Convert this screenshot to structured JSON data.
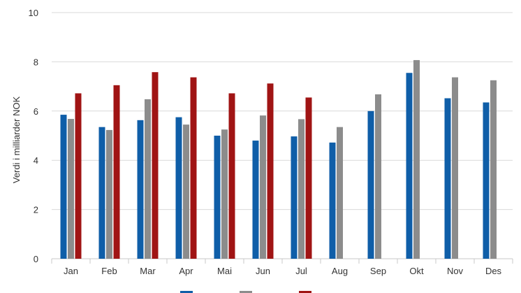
{
  "chart_data": {
    "type": "bar",
    "title": "",
    "xlabel": "",
    "ylabel": "Verdi i milliarder NOK",
    "ylim": [
      0,
      10
    ],
    "yticks": [
      0,
      2,
      4,
      6,
      8,
      10
    ],
    "grid": true,
    "legend": "bottom",
    "categories": [
      "Jan",
      "Feb",
      "Mar",
      "Apr",
      "Mai",
      "Jun",
      "Jul",
      "Aug",
      "Sep",
      "Okt",
      "Nov",
      "Des"
    ],
    "series": [
      {
        "color": "#0f5ea8",
        "values": [
          5.85,
          5.35,
          5.63,
          5.75,
          5.0,
          4.8,
          4.97,
          4.72,
          6.0,
          7.55,
          6.52,
          6.35
        ]
      },
      {
        "color": "#8c8c8c",
        "values": [
          5.68,
          5.23,
          6.48,
          5.45,
          5.25,
          5.82,
          5.67,
          5.35,
          6.68,
          8.07,
          7.37,
          7.25
        ]
      },
      {
        "color": "#a01414",
        "values": [
          6.72,
          7.05,
          7.58,
          7.37,
          6.72,
          7.12,
          6.55,
          null,
          null,
          null,
          null,
          null
        ]
      }
    ]
  }
}
